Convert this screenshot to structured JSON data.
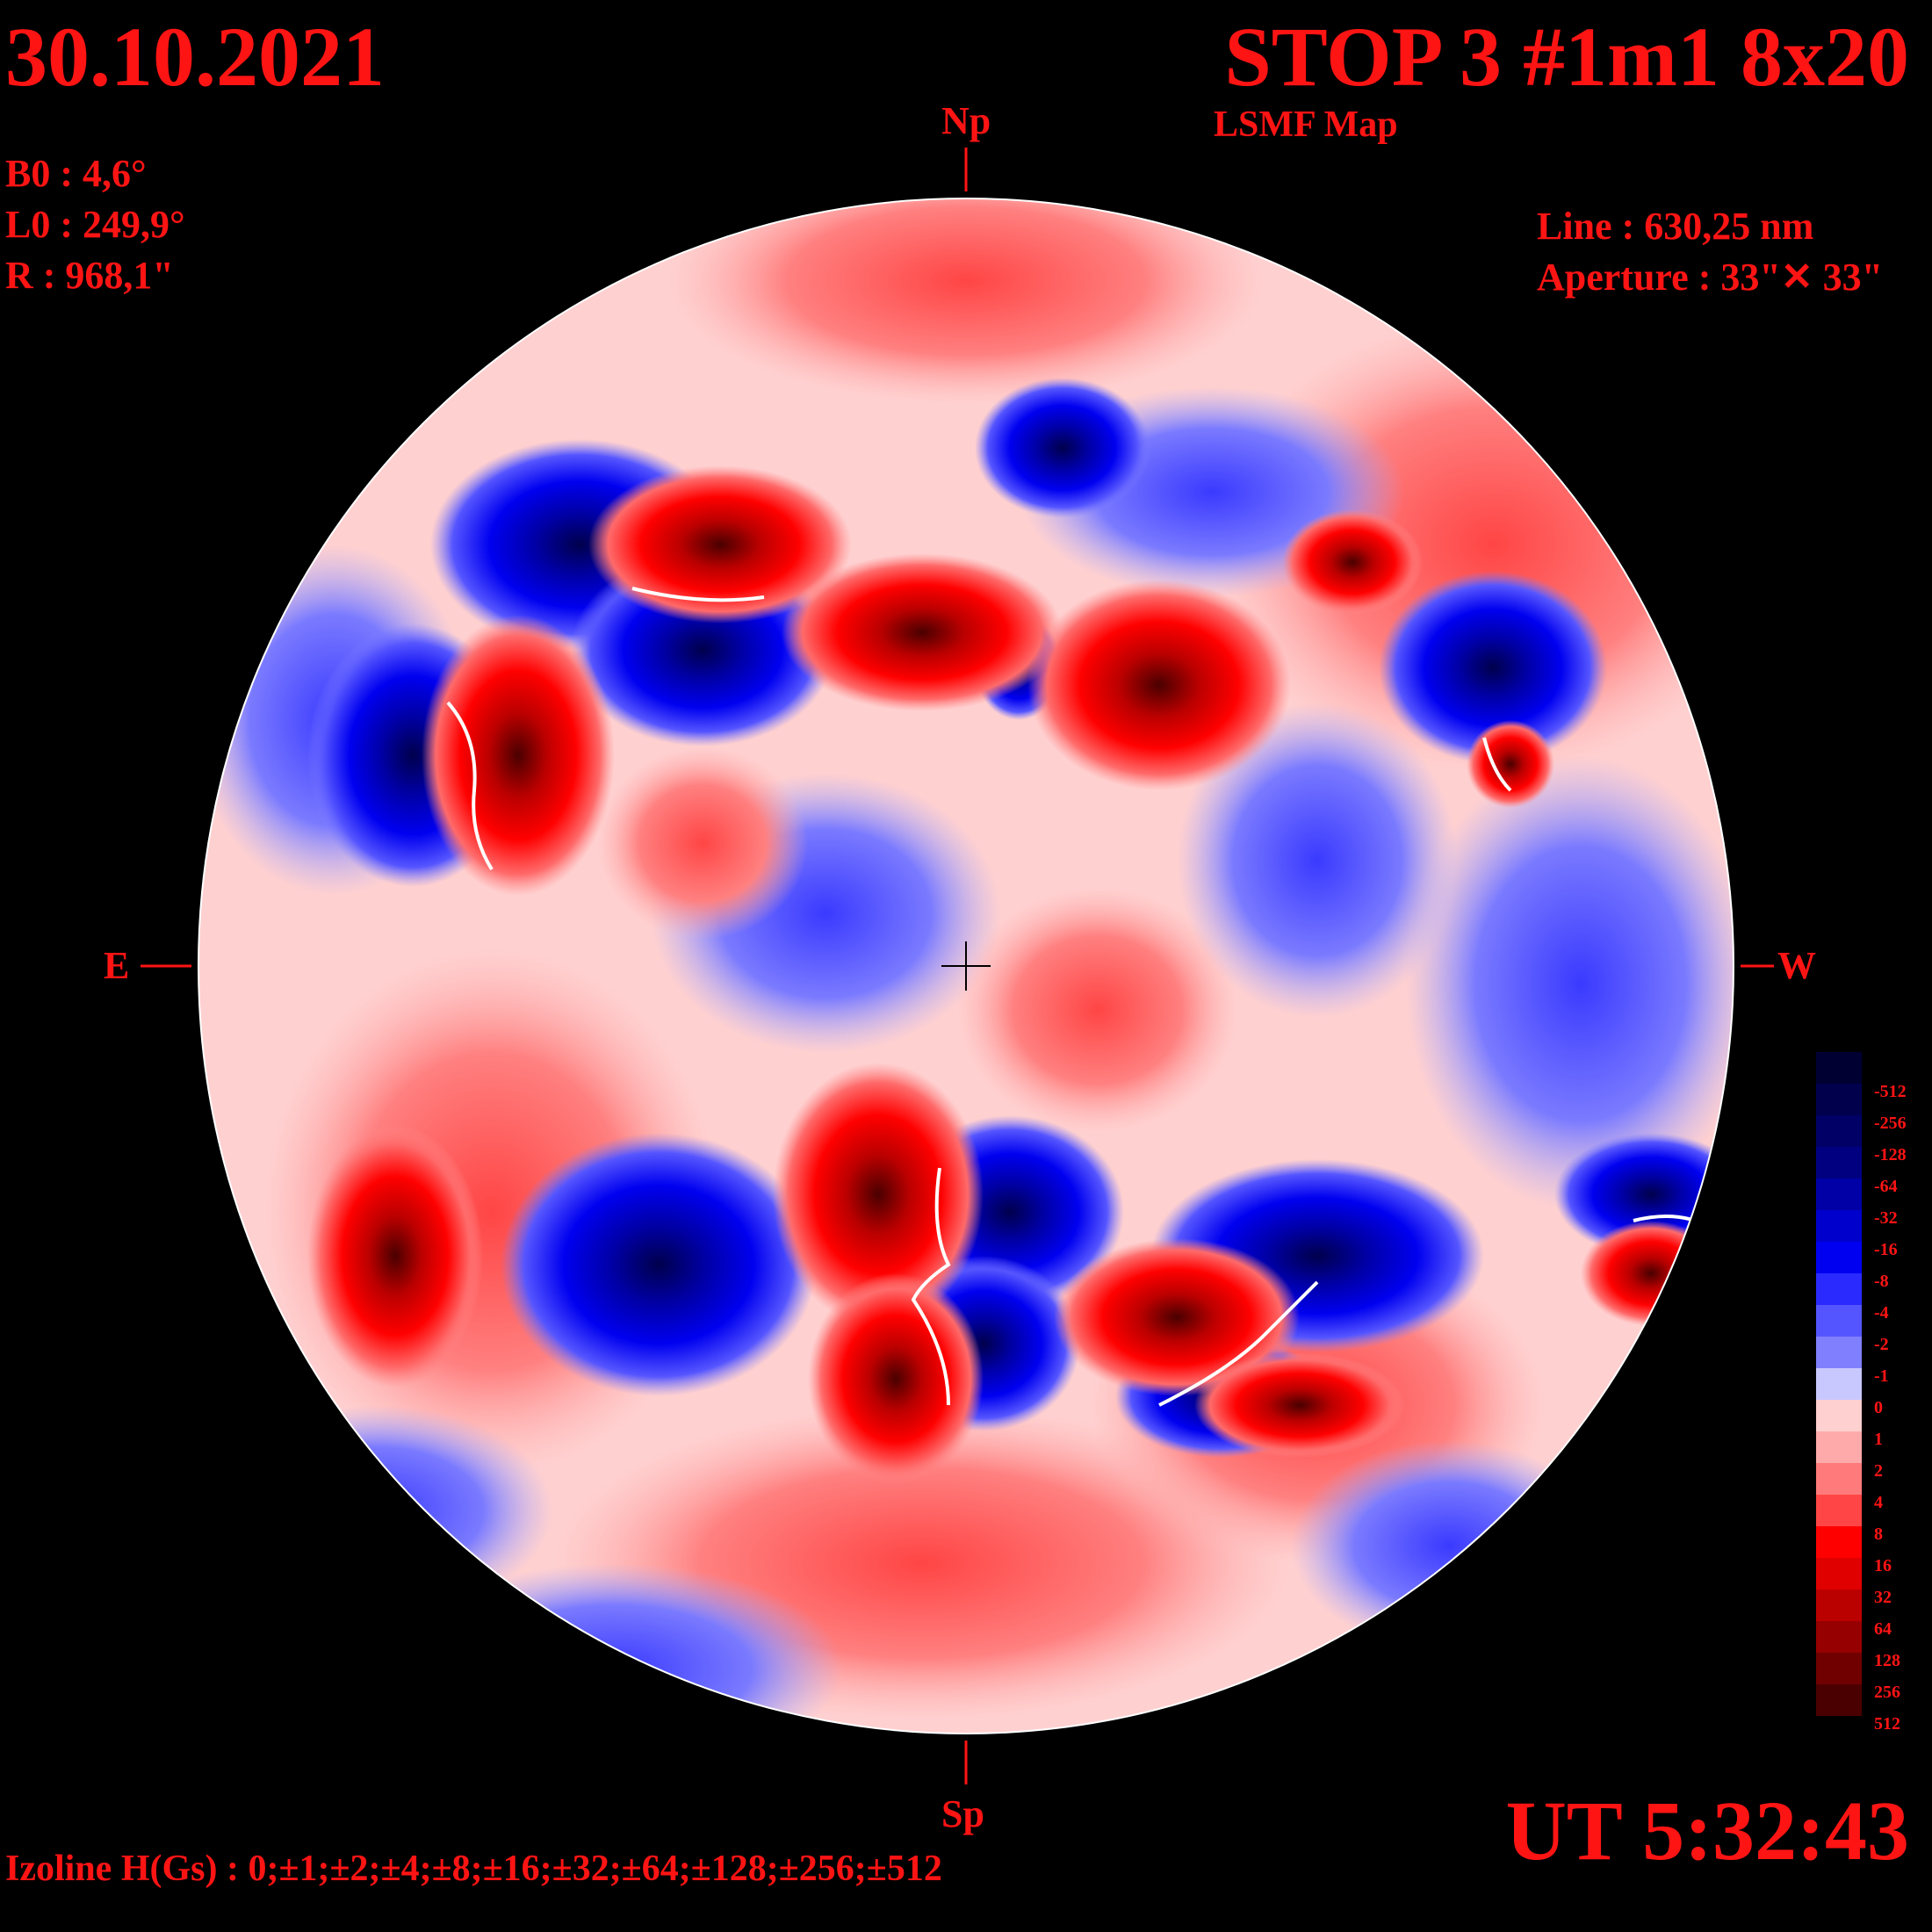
{
  "header": {
    "date": "30.10.2021",
    "title": "STOP 3 #1m1 8x20",
    "subtitle": "LSMF  Map"
  },
  "params": {
    "b0": "B0 : 4,6°",
    "l0": "L0 : 249,9°",
    "r": "R  : 968,1\"",
    "line": "Line :  630,25 nm",
    "aperture": "Aperture : 33\"✕ 33\""
  },
  "directions": {
    "north": "Np",
    "south": "Sp",
    "east": "E",
    "west": "W"
  },
  "footer": {
    "time": "UT 5:32:43",
    "izoline": "Izoline H(Gs) : 0;±1;±2;±4;±8;±16;±32;±64;±128;±256;±512"
  },
  "colorbar": {
    "labels": [
      "-512",
      "-256",
      "-128",
      "-64",
      "-32",
      "-16",
      "-8",
      "-4",
      "-2",
      "-1",
      "0",
      "1",
      "2",
      "4",
      "8",
      "16",
      "32",
      "64",
      "128",
      "256",
      "512"
    ],
    "colors": [
      "#000033",
      "#00004d",
      "#000066",
      "#000080",
      "#0000a6",
      "#0000cc",
      "#0000f0",
      "#2a2aff",
      "#5555ff",
      "#8080ff",
      "#c8c8ff",
      "#ffd0d0",
      "#ffaaaa",
      "#ff7a7a",
      "#ff4545",
      "#ff0000",
      "#e00000",
      "#bb0000",
      "#960000",
      "#700000",
      "#4a0000"
    ]
  },
  "map": {
    "positive_color": "#ff2020",
    "negative_color": "#1010e0",
    "neutral_color": "#ffffff"
  }
}
